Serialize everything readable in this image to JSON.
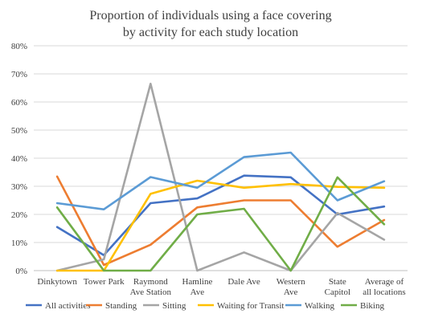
{
  "chart_data": {
    "type": "line",
    "title_line1": "Proportion of individuals using a face covering",
    "title_line2": "by activity for each study location",
    "categories": [
      [
        "Dinkytown"
      ],
      [
        "Tower Park"
      ],
      [
        "Raymond",
        "Ave Station"
      ],
      [
        "Hamline",
        "Ave"
      ],
      [
        "Dale Ave"
      ],
      [
        "Western",
        "Ave"
      ],
      [
        "State",
        "Capitol"
      ],
      [
        "Average of",
        "all locations"
      ]
    ],
    "ylim": [
      0,
      80
    ],
    "yticks": [
      "0%",
      "10%",
      "20%",
      "30%",
      "40%",
      "50%",
      "60%",
      "70%",
      "80%"
    ],
    "grid": true,
    "legend_position": "bottom",
    "series": [
      {
        "name": "All activities",
        "color": "#4472c4",
        "values": [
          15.5,
          5.5,
          24,
          25.7,
          33.8,
          33.2,
          20,
          22.8
        ]
      },
      {
        "name": "Standing",
        "color": "#ed7d31",
        "values": [
          33.5,
          2,
          9.2,
          22.5,
          25,
          25,
          8.5,
          18
        ]
      },
      {
        "name": "Sitting",
        "color": "#a5a5a5",
        "values": [
          0,
          4,
          66.5,
          0,
          6.5,
          0,
          20.5,
          11
        ]
      },
      {
        "name": "Waiting for Transit",
        "color": "#ffc000",
        "values": [
          0,
          0,
          27.3,
          32,
          29.5,
          30.8,
          29.8,
          29.5
        ]
      },
      {
        "name": "Walking",
        "color": "#5b9bd5",
        "values": [
          24,
          21.8,
          33.3,
          29.5,
          40.4,
          42,
          25,
          31.8
        ]
      },
      {
        "name": "Biking",
        "color": "#70ad47",
        "values": [
          22.5,
          0,
          0,
          20,
          22,
          0,
          33.2,
          16.5
        ]
      }
    ]
  }
}
